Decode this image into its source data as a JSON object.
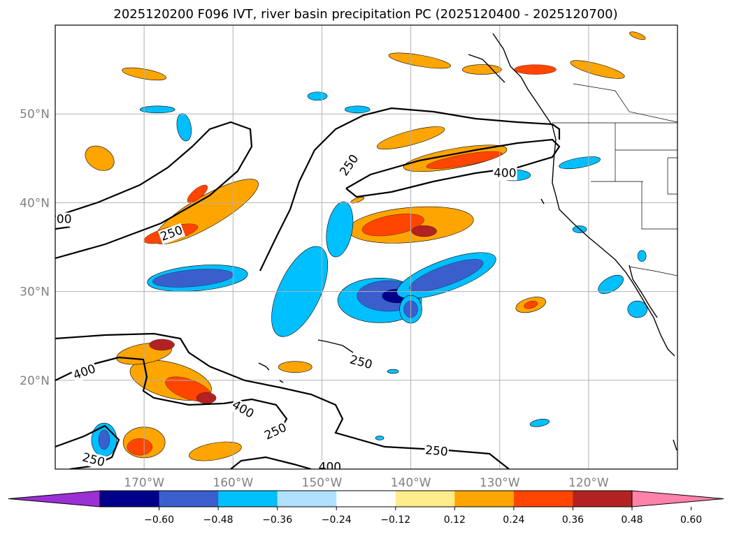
{
  "chart_data": {
    "type": "heatmap",
    "title": "2025120200 F096 IVT, river basin precipitation PC (2025120400 - 2025120700)",
    "map": {
      "lon_range": [
        -180,
        -110
      ],
      "lat_range": [
        10,
        60
      ],
      "x_ticks": [
        {
          "value": -170,
          "label": "170°W"
        },
        {
          "value": -160,
          "label": "160°W"
        },
        {
          "value": -150,
          "label": "150°W"
        },
        {
          "value": -140,
          "label": "140°W"
        },
        {
          "value": -130,
          "label": "130°W"
        },
        {
          "value": -120,
          "label": "120°W"
        }
      ],
      "y_ticks": [
        {
          "value": 20,
          "label": "20°N"
        },
        {
          "value": 30,
          "label": "30°N"
        },
        {
          "value": 40,
          "label": "40°N"
        },
        {
          "value": 50,
          "label": "50°N"
        }
      ],
      "grid": true
    },
    "colorbar": {
      "orientation": "horizontal",
      "extend": "both",
      "colors": [
        "#9b30d4",
        "#00008b",
        "#3a5fcd",
        "#00bfff",
        "#b0e2ff",
        "#ffffff",
        "#ffec8b",
        "#ffa500",
        "#ff4500",
        "#b22222",
        "#ff82ab"
      ],
      "ticks": [
        {
          "value": -0.6,
          "label": "−0.60"
        },
        {
          "value": -0.48,
          "label": "−0.48"
        },
        {
          "value": -0.36,
          "label": "−0.36"
        },
        {
          "value": -0.24,
          "label": "−0.24"
        },
        {
          "value": -0.12,
          "label": "−0.12"
        },
        {
          "value": 0.12,
          "label": "0.12"
        },
        {
          "value": 0.24,
          "label": "0.24"
        },
        {
          "value": 0.36,
          "label": "0.36"
        },
        {
          "value": 0.48,
          "label": "0.48"
        },
        {
          "value": 0.6,
          "label": "0.60"
        }
      ]
    },
    "contour_labels": [
      {
        "text": "250",
        "lon": -146.9,
        "lat": 44.2,
        "rot": -55
      },
      {
        "text": "400",
        "lon": -129.4,
        "lat": 43.3,
        "rot": 0
      },
      {
        "text": "250",
        "lon": -166.9,
        "lat": 36.5,
        "rot": -20
      },
      {
        "text": "00",
        "lon": -179,
        "lat": 38.1,
        "rot": 0
      },
      {
        "text": "250",
        "lon": -145.6,
        "lat": 22.0,
        "rot": 15
      },
      {
        "text": "400",
        "lon": -176.7,
        "lat": 20.9,
        "rot": -20
      },
      {
        "text": "400",
        "lon": -158.9,
        "lat": 16.7,
        "rot": 30
      },
      {
        "text": "250",
        "lon": -155.2,
        "lat": 14.2,
        "rot": -25
      },
      {
        "text": "250",
        "lon": -137.1,
        "lat": 12.0,
        "rot": 5
      },
      {
        "text": "250",
        "lon": -175.7,
        "lat": 11.0,
        "rot": 15
      },
      {
        "text": "400",
        "lon": -149.1,
        "lat": 10.2,
        "rot": 0
      }
    ],
    "positive_regions": [
      {
        "lon": -175,
        "lat": 45,
        "rx": 22,
        "ry": 16,
        "rot": 30,
        "level": 1
      },
      {
        "lon": -163,
        "lat": 39,
        "rx": 85,
        "ry": 22,
        "rot": -30,
        "level": 1
      },
      {
        "lon": -167,
        "lat": 36.5,
        "rx": 40,
        "ry": 10,
        "rot": -15,
        "level": 2
      },
      {
        "lon": -164,
        "lat": 41,
        "rx": 18,
        "ry": 7,
        "rot": -40,
        "level": 2
      },
      {
        "lon": -140,
        "lat": 37.5,
        "rx": 90,
        "ry": 25,
        "rot": -5,
        "level": 1
      },
      {
        "lon": -142,
        "lat": 37.5,
        "rx": 45,
        "ry": 14,
        "rot": -10,
        "level": 2
      },
      {
        "lon": -138.5,
        "lat": 36.8,
        "rx": 18,
        "ry": 8,
        "rot": 0,
        "level": 3
      },
      {
        "lon": -140,
        "lat": 47.3,
        "rx": 50,
        "ry": 10,
        "rot": -15,
        "level": 1
      },
      {
        "lon": -135,
        "lat": 45,
        "rx": 75,
        "ry": 14,
        "rot": -10,
        "level": 1
      },
      {
        "lon": -134,
        "lat": 44.8,
        "rx": 55,
        "ry": 8,
        "rot": -10,
        "level": 2
      },
      {
        "lon": -132,
        "lat": 55,
        "rx": 28,
        "ry": 7,
        "rot": 0,
        "level": 1
      },
      {
        "lon": -126,
        "lat": 55,
        "rx": 30,
        "ry": 7,
        "rot": 0,
        "level": 2
      },
      {
        "lon": -119,
        "lat": 55,
        "rx": 40,
        "ry": 8,
        "rot": 15,
        "level": 1
      },
      {
        "lon": -139,
        "lat": 56,
        "rx": 45,
        "ry": 8,
        "rot": 10,
        "level": 1
      },
      {
        "lon": -167,
        "lat": 20,
        "rx": 60,
        "ry": 25,
        "rot": 15,
        "level": 1
      },
      {
        "lon": -165,
        "lat": 19,
        "rx": 35,
        "ry": 14,
        "rot": 20,
        "level": 2
      },
      {
        "lon": -163,
        "lat": 18,
        "rx": 14,
        "ry": 8,
        "rot": 0,
        "level": 3
      },
      {
        "lon": -170,
        "lat": 23,
        "rx": 40,
        "ry": 14,
        "rot": -10,
        "level": 1
      },
      {
        "lon": -168,
        "lat": 24,
        "rx": 18,
        "ry": 8,
        "rot": 0,
        "level": 3
      },
      {
        "lon": -170,
        "lat": 13,
        "rx": 30,
        "ry": 22,
        "rot": 0,
        "level": 1
      },
      {
        "lon": -170.5,
        "lat": 12.5,
        "rx": 18,
        "ry": 12,
        "rot": 0,
        "level": 2
      },
      {
        "lon": -162,
        "lat": 12,
        "rx": 38,
        "ry": 12,
        "rot": -10,
        "level": 1
      },
      {
        "lon": -153,
        "lat": 21.5,
        "rx": 24,
        "ry": 8,
        "rot": 0,
        "level": 1
      },
      {
        "lon": -126.5,
        "lat": 28.5,
        "rx": 22,
        "ry": 10,
        "rot": -15,
        "level": 1
      },
      {
        "lon": -126.5,
        "lat": 28.5,
        "rx": 10,
        "ry": 5,
        "rot": -15,
        "level": 2
      },
      {
        "lon": -114.5,
        "lat": 58.8,
        "rx": 12,
        "ry": 4,
        "rot": 20,
        "level": 1
      },
      {
        "lon": -170,
        "lat": 54.5,
        "rx": 32,
        "ry": 7,
        "rot": 10,
        "level": 1
      },
      {
        "lon": -146,
        "lat": 40.3,
        "rx": 10,
        "ry": 3,
        "rot": -20,
        "level": 1
      }
    ],
    "negative_regions": [
      {
        "lon": -164,
        "lat": 31.5,
        "rx": 72,
        "ry": 18,
        "rot": -5,
        "level": 1
      },
      {
        "lon": -164.5,
        "lat": 31.5,
        "rx": 58,
        "ry": 12,
        "rot": -5,
        "level": 2
      },
      {
        "lon": -152.5,
        "lat": 30,
        "rx": 30,
        "ry": 70,
        "rot": 25,
        "level": 1
      },
      {
        "lon": -143.5,
        "lat": 29,
        "rx": 60,
        "ry": 32,
        "rot": 0,
        "level": 1
      },
      {
        "lon": -142.5,
        "lat": 29.5,
        "rx": 45,
        "ry": 22,
        "rot": 0,
        "level": 2
      },
      {
        "lon": -141.5,
        "lat": 29.5,
        "rx": 22,
        "ry": 10,
        "rot": 0,
        "level": 3
      },
      {
        "lon": -136,
        "lat": 31.8,
        "rx": 75,
        "ry": 22,
        "rot": -20,
        "level": 1
      },
      {
        "lon": -136,
        "lat": 31.8,
        "rx": 56,
        "ry": 14,
        "rot": -20,
        "level": 2
      },
      {
        "lon": -148,
        "lat": 37,
        "rx": 18,
        "ry": 40,
        "rot": 10,
        "level": 1
      },
      {
        "lon": -142,
        "lat": 21,
        "rx": 8,
        "ry": 3,
        "rot": 0,
        "level": 1
      },
      {
        "lon": -140,
        "lat": 28,
        "rx": 16,
        "ry": 20,
        "rot": 0,
        "level": 1
      },
      {
        "lon": -140,
        "lat": 28,
        "rx": 10,
        "ry": 12,
        "rot": 0,
        "level": 2
      },
      {
        "lon": -128.5,
        "lat": 43.1,
        "rx": 25,
        "ry": 8,
        "rot": 0,
        "level": 1
      },
      {
        "lon": -121,
        "lat": 44.5,
        "rx": 30,
        "ry": 7,
        "rot": -10,
        "level": 1
      },
      {
        "lon": -174.5,
        "lat": 13.3,
        "rx": 18,
        "ry": 24,
        "rot": 0,
        "level": 1
      },
      {
        "lon": -174.5,
        "lat": 13.3,
        "rx": 8,
        "ry": 14,
        "rot": 0,
        "level": 2
      },
      {
        "lon": -175,
        "lat": 48.3,
        "rx": 0,
        "ry": 0,
        "rot": 0,
        "level": 1
      },
      {
        "lon": -165.5,
        "lat": 48.5,
        "rx": 10,
        "ry": 20,
        "rot": -10,
        "level": 1
      },
      {
        "lon": -168.5,
        "lat": 50.5,
        "rx": 25,
        "ry": 5,
        "rot": 0,
        "level": 1
      },
      {
        "lon": -150.5,
        "lat": 52,
        "rx": 14,
        "ry": 6,
        "rot": 0,
        "level": 1
      },
      {
        "lon": -146,
        "lat": 50.5,
        "rx": 18,
        "ry": 5,
        "rot": 0,
        "level": 1
      },
      {
        "lon": -117.5,
        "lat": 30.8,
        "rx": 20,
        "ry": 10,
        "rot": -30,
        "level": 1
      },
      {
        "lon": -114,
        "lat": 34,
        "rx": 6,
        "ry": 8,
        "rot": 0,
        "level": 1
      },
      {
        "lon": -114.5,
        "lat": 28,
        "rx": 14,
        "ry": 12,
        "rot": 0,
        "level": 1
      },
      {
        "lon": -121,
        "lat": 37,
        "rx": 10,
        "ry": 5,
        "rot": 0,
        "level": 1
      },
      {
        "lon": -125.5,
        "lat": 15.2,
        "rx": 14,
        "ry": 5,
        "rot": -10,
        "level": 1
      },
      {
        "lon": -143.5,
        "lat": 13.5,
        "rx": 6,
        "ry": 3,
        "rot": 0,
        "level": 1
      }
    ]
  }
}
